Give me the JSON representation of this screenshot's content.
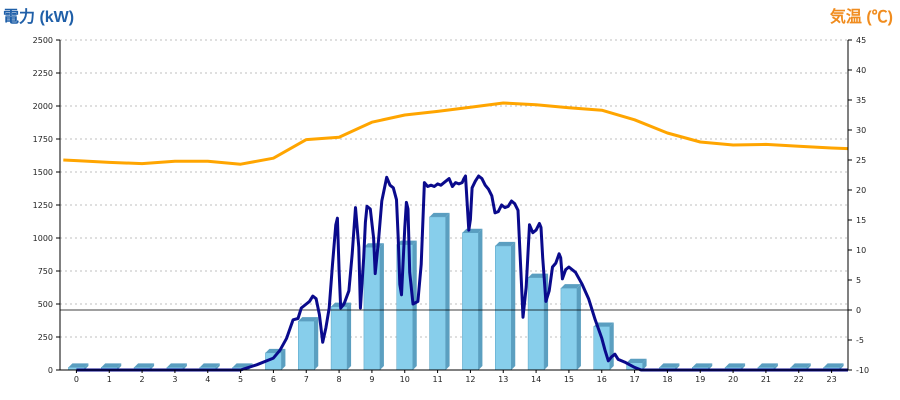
{
  "chart_data": {
    "type": "bar+line",
    "left_axis": {
      "title": "電力 (kW)",
      "color": "#1f5fa8",
      "ylim": [
        0,
        2500
      ],
      "ticks": [
        0,
        250,
        500,
        750,
        1000,
        1250,
        1500,
        1750,
        2000,
        2250,
        2500
      ]
    },
    "right_axis": {
      "title": "気温 (℃)",
      "color": "#f08c1e",
      "ylim": [
        -10,
        45
      ],
      "ticks": [
        -10,
        -5,
        0,
        5,
        10,
        15,
        20,
        25,
        30,
        35,
        40,
        45
      ]
    },
    "grid": true,
    "x_ticks": [
      "0",
      "1",
      "2",
      "3",
      "4",
      "5",
      "6",
      "7",
      "8",
      "9",
      "10",
      "11",
      "12",
      "13",
      "14",
      "15",
      "16",
      "17",
      "18",
      "19",
      "20",
      "21",
      "22",
      "23"
    ],
    "bars": {
      "color": "#87ceeb",
      "values": [
        20,
        20,
        20,
        20,
        20,
        20,
        130,
        370,
        480,
        930,
        950,
        1160,
        1040,
        940,
        700,
        620,
        330,
        55,
        20,
        20,
        20,
        20,
        20,
        20
      ]
    },
    "power_line": {
      "color": "#0a0a8c",
      "points": [
        [
          0,
          0
        ],
        [
          1,
          0
        ],
        [
          2,
          0
        ],
        [
          3,
          0
        ],
        [
          4,
          0
        ],
        [
          5,
          0
        ],
        [
          5.5,
          40
        ],
        [
          6,
          90
        ],
        [
          6.2,
          150
        ],
        [
          6.4,
          240
        ],
        [
          6.6,
          380
        ],
        [
          6.75,
          390
        ],
        [
          6.85,
          470
        ],
        [
          7,
          500
        ],
        [
          7.1,
          520
        ],
        [
          7.2,
          560
        ],
        [
          7.3,
          540
        ],
        [
          7.4,
          420
        ],
        [
          7.5,
          210
        ],
        [
          7.6,
          320
        ],
        [
          7.7,
          470
        ],
        [
          7.8,
          800
        ],
        [
          7.9,
          1100
        ],
        [
          7.95,
          1150
        ],
        [
          8.0,
          750
        ],
        [
          8.05,
          470
        ],
        [
          8.15,
          500
        ],
        [
          8.3,
          600
        ],
        [
          8.4,
          880
        ],
        [
          8.5,
          1230
        ],
        [
          8.6,
          930
        ],
        [
          8.65,
          470
        ],
        [
          8.75,
          850
        ],
        [
          8.8,
          1120
        ],
        [
          8.85,
          1240
        ],
        [
          8.95,
          1220
        ],
        [
          9.05,
          1000
        ],
        [
          9.1,
          730
        ],
        [
          9.2,
          980
        ],
        [
          9.3,
          1280
        ],
        [
          9.45,
          1460
        ],
        [
          9.55,
          1400
        ],
        [
          9.65,
          1380
        ],
        [
          9.75,
          1290
        ],
        [
          9.8,
          1000
        ],
        [
          9.85,
          650
        ],
        [
          9.9,
          570
        ],
        [
          10.0,
          1080
        ],
        [
          10.05,
          1270
        ],
        [
          10.1,
          1220
        ],
        [
          10.15,
          740
        ],
        [
          10.25,
          500
        ],
        [
          10.4,
          520
        ],
        [
          10.5,
          800
        ],
        [
          10.6,
          1420
        ],
        [
          10.7,
          1390
        ],
        [
          10.8,
          1400
        ],
        [
          10.9,
          1390
        ],
        [
          11.0,
          1410
        ],
        [
          11.1,
          1400
        ],
        [
          11.2,
          1420
        ],
        [
          11.35,
          1450
        ],
        [
          11.45,
          1390
        ],
        [
          11.55,
          1420
        ],
        [
          11.65,
          1410
        ],
        [
          11.75,
          1420
        ],
        [
          11.8,
          1450
        ],
        [
          11.85,
          1470
        ],
        [
          11.95,
          1060
        ],
        [
          12.0,
          1140
        ],
        [
          12.05,
          1380
        ],
        [
          12.15,
          1430
        ],
        [
          12.25,
          1470
        ],
        [
          12.35,
          1450
        ],
        [
          12.45,
          1400
        ],
        [
          12.55,
          1370
        ],
        [
          12.65,
          1320
        ],
        [
          12.75,
          1190
        ],
        [
          12.85,
          1200
        ],
        [
          12.95,
          1250
        ],
        [
          13.05,
          1230
        ],
        [
          13.15,
          1240
        ],
        [
          13.25,
          1280
        ],
        [
          13.35,
          1260
        ],
        [
          13.45,
          1210
        ],
        [
          13.55,
          680
        ],
        [
          13.6,
          400
        ],
        [
          13.7,
          630
        ],
        [
          13.8,
          1100
        ],
        [
          13.9,
          1040
        ],
        [
          14.0,
          1060
        ],
        [
          14.1,
          1110
        ],
        [
          14.15,
          1080
        ],
        [
          14.2,
          850
        ],
        [
          14.3,
          520
        ],
        [
          14.4,
          600
        ],
        [
          14.5,
          780
        ],
        [
          14.6,
          810
        ],
        [
          14.7,
          880
        ],
        [
          14.75,
          850
        ],
        [
          14.8,
          690
        ],
        [
          14.9,
          760
        ],
        [
          15.0,
          780
        ],
        [
          15.2,
          740
        ],
        [
          15.4,
          650
        ],
        [
          15.6,
          540
        ],
        [
          15.8,
          380
        ],
        [
          16.0,
          240
        ],
        [
          16.1,
          150
        ],
        [
          16.2,
          70
        ],
        [
          16.3,
          100
        ],
        [
          16.4,
          120
        ],
        [
          16.5,
          80
        ],
        [
          16.7,
          60
        ],
        [
          17.0,
          20
        ],
        [
          17.2,
          0
        ],
        [
          18,
          0
        ],
        [
          19,
          0
        ],
        [
          20,
          0
        ],
        [
          21,
          0
        ],
        [
          22,
          0
        ],
        [
          23,
          0
        ],
        [
          23.5,
          0
        ]
      ]
    },
    "temperature_line": {
      "color": "#ffa500",
      "points": [
        [
          -0.4,
          25
        ],
        [
          0,
          24.9
        ],
        [
          1,
          24.6
        ],
        [
          2,
          24.4
        ],
        [
          3,
          24.8
        ],
        [
          4,
          24.8
        ],
        [
          5,
          24.3
        ],
        [
          6,
          25.3
        ],
        [
          7,
          28.4
        ],
        [
          8,
          28.8
        ],
        [
          9,
          31.3
        ],
        [
          10,
          32.5
        ],
        [
          11,
          33.1
        ],
        [
          12,
          33.8
        ],
        [
          13,
          34.5
        ],
        [
          14,
          34.2
        ],
        [
          15,
          33.7
        ],
        [
          16,
          33.3
        ],
        [
          17,
          31.7
        ],
        [
          18,
          29.5
        ],
        [
          19,
          28.0
        ],
        [
          20,
          27.5
        ],
        [
          21,
          27.6
        ],
        [
          22,
          27.3
        ],
        [
          23,
          27.0
        ],
        [
          23.5,
          26.9
        ]
      ]
    }
  }
}
